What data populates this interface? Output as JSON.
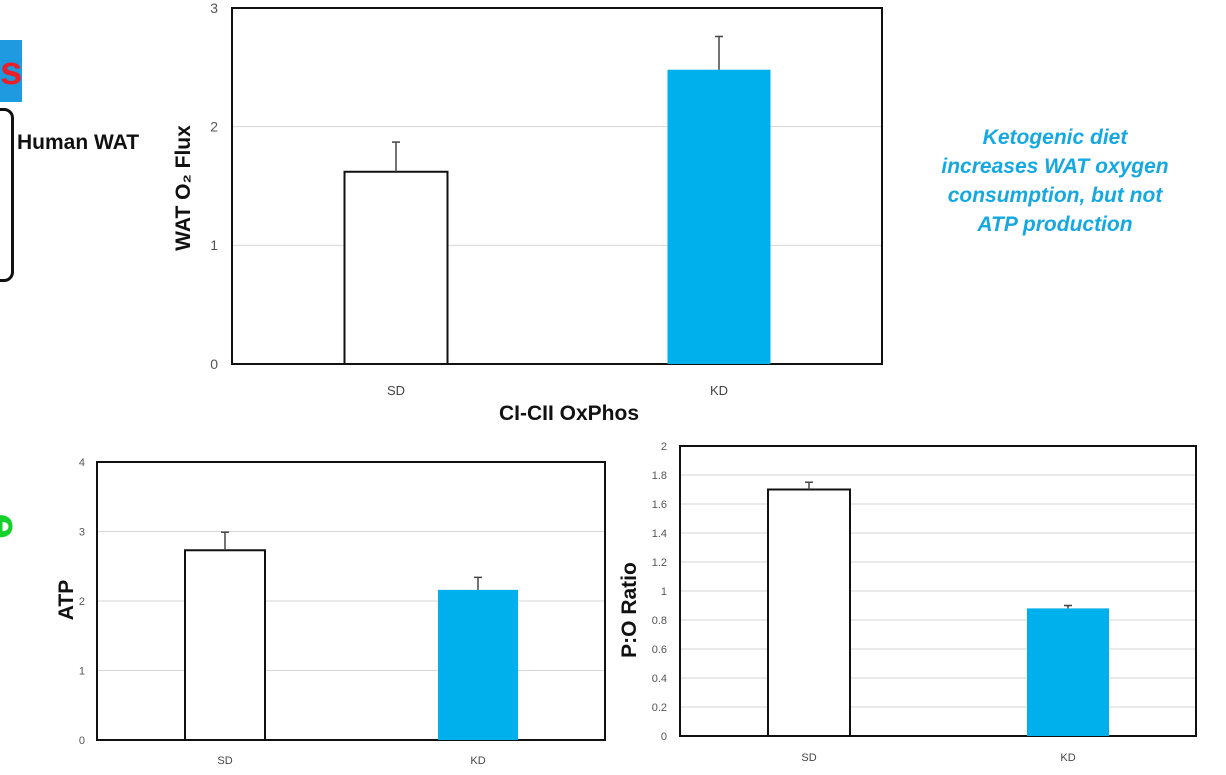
{
  "fragments": {
    "left_badge_letter": "s",
    "human_wat_label": "Human WAT",
    "green_letter": "e"
  },
  "colors": {
    "sd_bar": "#ffffff",
    "kd_bar": "#00b0ec",
    "note_text": "#16a8e0"
  },
  "note": {
    "lines": [
      "Ketogenic diet",
      "increases WAT oxygen",
      "consumption, but not",
      "ATP production"
    ]
  },
  "chart_data": [
    {
      "id": "top",
      "type": "bar",
      "title": "",
      "xlabel": "CI-CII OxPhos",
      "ylabel": "WAT O₂ Flux",
      "categories": [
        "SD",
        "KD"
      ],
      "values": [
        1.62,
        2.48
      ],
      "errors": [
        0.25,
        0.28
      ],
      "ylim": [
        0,
        3
      ],
      "yticks": [
        0,
        1,
        2,
        3
      ],
      "ytick_labels": [
        "0",
        "1",
        "2",
        "3"
      ],
      "grid": true
    },
    {
      "id": "bottom-left",
      "type": "bar",
      "title": "",
      "xlabel": "",
      "ylabel": "ATP",
      "categories": [
        "SD",
        "KD"
      ],
      "values": [
        2.73,
        2.16
      ],
      "errors": [
        0.26,
        0.18
      ],
      "ylim": [
        0,
        4
      ],
      "yticks": [
        0,
        1,
        2,
        3,
        4
      ],
      "ytick_labels": [
        "0",
        "1",
        "2",
        "3",
        "4"
      ],
      "grid": true
    },
    {
      "id": "bottom-right",
      "type": "bar",
      "title": "",
      "xlabel": "",
      "ylabel": "P:O Ratio",
      "categories": [
        "SD",
        "KD"
      ],
      "values": [
        1.7,
        0.88
      ],
      "errors": [
        0.05,
        0.02
      ],
      "ylim": [
        0,
        2
      ],
      "yticks": [
        0,
        0.2,
        0.4,
        0.6,
        0.8,
        1,
        1.2,
        1.4,
        1.6,
        1.8,
        2
      ],
      "ytick_labels": [
        "0",
        "0.2",
        "0.4",
        "0.6",
        "0.8",
        "1",
        "1.2",
        "1.4",
        "1.6",
        "1.8",
        "2"
      ],
      "grid": true
    }
  ]
}
